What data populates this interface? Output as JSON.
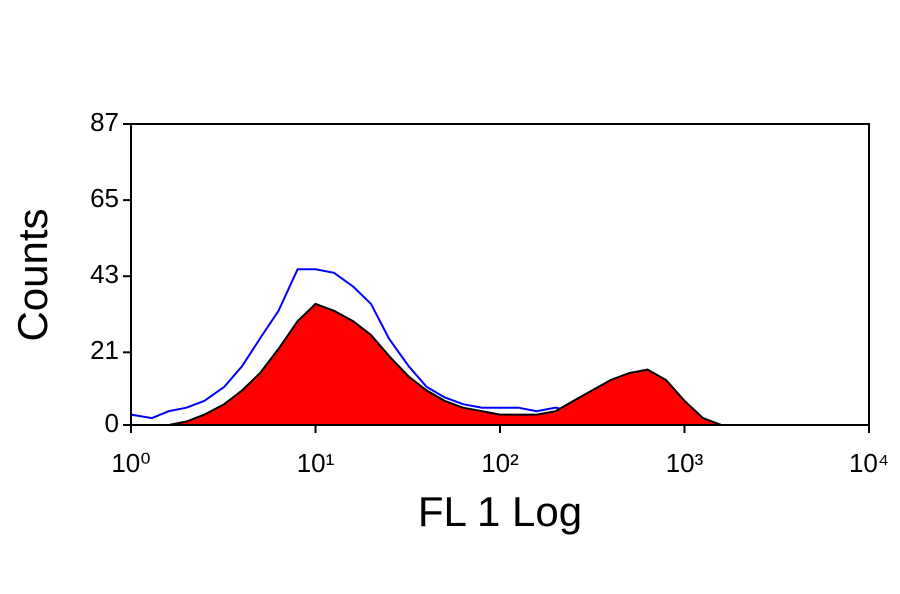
{
  "chart_data": {
    "type": "area",
    "xlabel": "FL 1 Log",
    "ylabel": "Counts",
    "x": [
      1,
      1.3,
      1.6,
      2,
      2.5,
      3.2,
      4,
      5,
      6.3,
      8,
      10,
      12.6,
      16,
      20,
      25,
      32,
      40,
      50,
      63,
      80,
      100,
      126,
      158,
      200,
      251,
      316,
      398,
      501,
      631,
      794,
      1000,
      1259,
      1585,
      2000,
      2512,
      3162,
      3981
    ],
    "series": [
      {
        "color": "#0000ff",
        "fill": false,
        "values": [
          3,
          2,
          4,
          5,
          7,
          11,
          17,
          25,
          33,
          45,
          45,
          44,
          40,
          35,
          25,
          17,
          11,
          8,
          6,
          5,
          5,
          5,
          4,
          5,
          4,
          4,
          3,
          2,
          2,
          2,
          1,
          1,
          0,
          0,
          0,
          0,
          0
        ]
      },
      {
        "color": "#ff0000",
        "edgecolor": "#000000",
        "fill": true,
        "values": [
          0,
          0,
          0,
          1,
          3,
          6,
          10,
          15,
          22,
          30,
          35,
          33,
          30,
          26,
          20,
          14,
          10,
          7,
          5,
          4,
          3,
          3,
          3,
          4,
          7,
          10,
          13,
          15,
          16,
          13,
          7,
          2,
          0,
          0,
          0,
          0,
          0
        ]
      }
    ],
    "xscale": "log",
    "xlim": [
      1,
      10000
    ],
    "xticks": [
      {
        "value": 1,
        "label": "10⁰"
      },
      {
        "value": 10,
        "label": "10¹"
      },
      {
        "value": 100,
        "label": "10²"
      },
      {
        "value": 1000,
        "label": "10³"
      },
      {
        "value": 10000,
        "label": "10⁴"
      }
    ],
    "ylim": [
      0,
      87
    ],
    "yticks": [
      0,
      21,
      43,
      65,
      87
    ]
  }
}
